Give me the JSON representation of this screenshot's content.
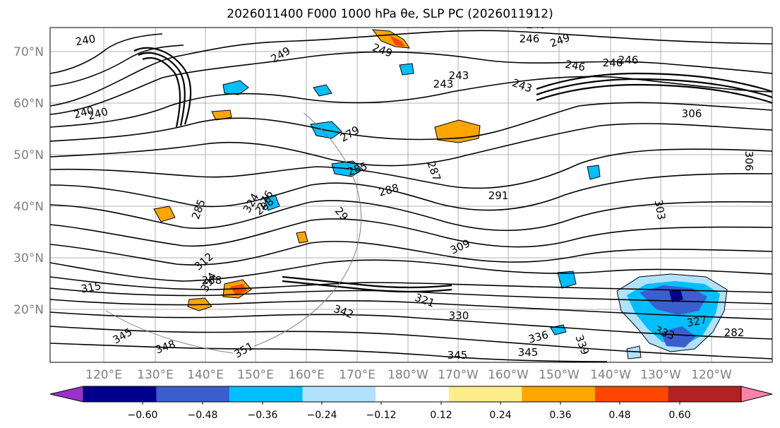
{
  "title": "2026011400 F000 1000 hPa θe, SLP PC (2026011912)",
  "latitude_labels": [
    "70°N",
    "60°N",
    "50°N",
    "40°N",
    "30°N",
    "20°N"
  ],
  "longitude_labels": [
    "120°E",
    "130°E",
    "140°E",
    "150°E",
    "160°E",
    "170°E",
    "180°W",
    "170°W",
    "160°W",
    "150°W",
    "140°W",
    "130°W",
    "120°W"
  ],
  "contour_labels": [
    "240",
    "243",
    "246",
    "249",
    "240",
    "249",
    "249",
    "246",
    "243",
    "246",
    "243",
    "246",
    "243",
    "240",
    "279",
    "285",
    "287",
    "288",
    "291",
    "288",
    "303",
    "306",
    "306",
    "29",
    "309",
    "312",
    "315",
    "321",
    "327",
    "330",
    "333",
    "336",
    "339",
    "342",
    "345",
    "345",
    "345",
    "348",
    "351",
    "354",
    "324",
    "285",
    "276",
    "282",
    "288"
  ],
  "colorbar": {
    "tick_labels": [
      "−0.60",
      "−0.48",
      "−0.36",
      "−0.24",
      "−0.12",
      "0.12",
      "0.24",
      "0.36",
      "0.48",
      "0.60"
    ],
    "colors": [
      "#9a32cd",
      "#00008b",
      "#3a5fcd",
      "#00bfff",
      "#b0e2ff",
      "#ffffff",
      "#ffec8b",
      "#ffa500",
      "#ff4500",
      "#b22222",
      "#ff82ab"
    ]
  },
  "shading_colors": {
    "orange": "#ffa500",
    "red_orange": "#ff4500",
    "light_blue": "#b0e2ff",
    "blue": "#00bfff",
    "royal_blue": "#3a5fcd",
    "navy": "#00008b"
  }
}
